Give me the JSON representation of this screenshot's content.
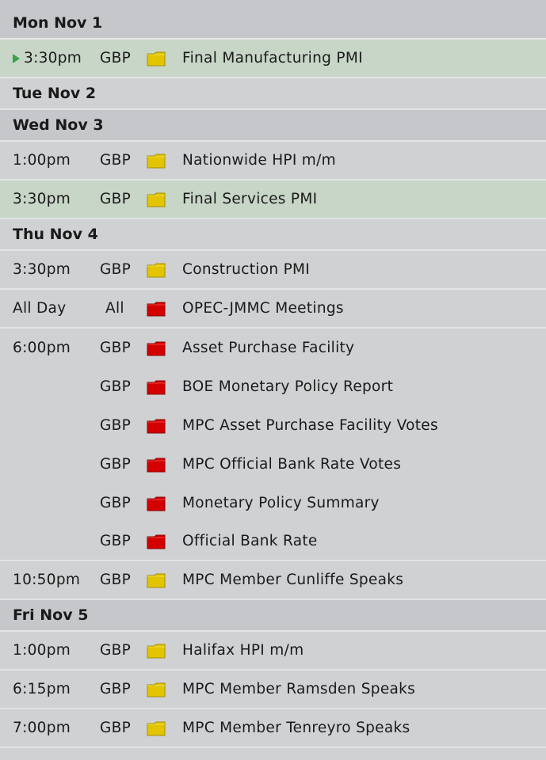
{
  "colors": {
    "medium_impact": "#e2c400",
    "high_impact": "#d40000",
    "current_row": "#c8d6c8",
    "marker": "#3aa24a"
  },
  "days": [
    {
      "label": "Mon Nov 1",
      "events": [
        {
          "time": "3:30pm",
          "currency": "GBP",
          "impact": "medium",
          "title": "Final Manufacturing PMI",
          "current": true
        }
      ]
    },
    {
      "label": "Tue Nov 2",
      "events": []
    },
    {
      "label": "Wed Nov 3",
      "events": [
        {
          "time": "1:00pm",
          "currency": "GBP",
          "impact": "medium",
          "title": "Nationwide HPI m/m"
        },
        {
          "time": "3:30pm",
          "currency": "GBP",
          "impact": "medium",
          "title": "Final Services PMI"
        }
      ]
    },
    {
      "label": "Thu Nov 4",
      "events": [
        {
          "time": "3:30pm",
          "currency": "GBP",
          "impact": "medium",
          "title": "Construction PMI"
        },
        {
          "time": "All Day",
          "currency": "All",
          "impact": "high",
          "title": "OPEC-JMMC Meetings"
        },
        {
          "time": "6:00pm",
          "currency": "GBP",
          "impact": "high",
          "title": "Asset Purchase Facility"
        },
        {
          "time": "",
          "currency": "GBP",
          "impact": "high",
          "title": "BOE Monetary Policy Report"
        },
        {
          "time": "",
          "currency": "GBP",
          "impact": "high",
          "title": "MPC Asset Purchase Facility Votes"
        },
        {
          "time": "",
          "currency": "GBP",
          "impact": "high",
          "title": "MPC Official Bank Rate Votes"
        },
        {
          "time": "",
          "currency": "GBP",
          "impact": "high",
          "title": "Monetary Policy Summary"
        },
        {
          "time": "",
          "currency": "GBP",
          "impact": "high",
          "title": "Official Bank Rate"
        },
        {
          "time": "10:50pm",
          "currency": "GBP",
          "impact": "medium",
          "title": "MPC Member Cunliffe Speaks"
        }
      ]
    },
    {
      "label": "Fri Nov 5",
      "events": [
        {
          "time": "1:00pm",
          "currency": "GBP",
          "impact": "medium",
          "title": "Halifax HPI m/m"
        },
        {
          "time": "6:15pm",
          "currency": "GBP",
          "impact": "medium",
          "title": "MPC Member Ramsden Speaks"
        },
        {
          "time": "7:00pm",
          "currency": "GBP",
          "impact": "medium",
          "title": "MPC Member Tenreyro Speaks"
        }
      ]
    }
  ]
}
